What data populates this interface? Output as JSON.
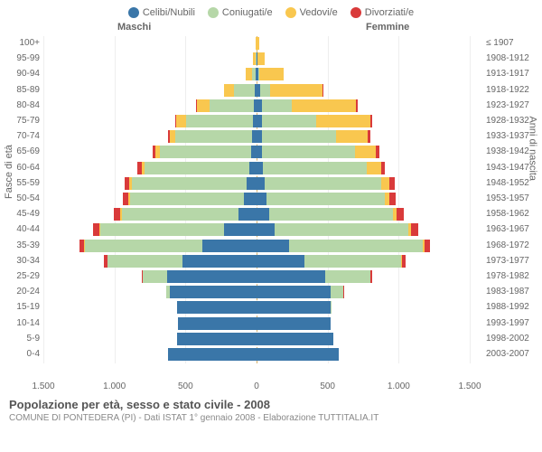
{
  "legend": [
    {
      "label": "Celibi/Nubili",
      "color": "#3a76a8"
    },
    {
      "label": "Coniugati/e",
      "color": "#b6d7a8"
    },
    {
      "label": "Vedovi/e",
      "color": "#f9c74f"
    },
    {
      "label": "Divorziati/e",
      "color": "#d93a3a"
    }
  ],
  "headers": {
    "male": "Maschi",
    "female": "Femmine"
  },
  "axis": {
    "left_title": "Fasce di età",
    "right_title": "Anni di nascita",
    "x_ticks": [
      {
        "v": -1500,
        "l": "1.500"
      },
      {
        "v": -1000,
        "l": "1.000"
      },
      {
        "v": -500,
        "l": "500"
      },
      {
        "v": 0,
        "l": "0"
      },
      {
        "v": 500,
        "l": "500"
      },
      {
        "v": 1000,
        "l": "1.000"
      },
      {
        "v": 1500,
        "l": "1.500"
      }
    ],
    "x_max": 1500,
    "grid": [
      -1500,
      -1000,
      -500,
      0,
      500,
      1000,
      1500
    ]
  },
  "colors": {
    "celibi": "#3a76a8",
    "coniugati": "#b6d7a8",
    "vedovi": "#f9c74f",
    "divorziati": "#d93a3a",
    "grid": "#eeeeee",
    "center": "#d8b26b",
    "bg": "#ffffff"
  },
  "rows": [
    {
      "age": "100+",
      "birth": "≤ 1907",
      "m": {
        "c": 0,
        "co": 0,
        "v": 5,
        "d": 0
      },
      "f": {
        "c": 0,
        "co": 0,
        "v": 20,
        "d": 0
      }
    },
    {
      "age": "95-99",
      "birth": "1908-1912",
      "m": {
        "c": 0,
        "co": 5,
        "v": 20,
        "d": 0
      },
      "f": {
        "c": 5,
        "co": 0,
        "v": 55,
        "d": 0
      }
    },
    {
      "age": "90-94",
      "birth": "1913-1917",
      "m": {
        "c": 5,
        "co": 30,
        "v": 40,
        "d": 0
      },
      "f": {
        "c": 10,
        "co": 10,
        "v": 170,
        "d": 0
      }
    },
    {
      "age": "85-89",
      "birth": "1918-1922",
      "m": {
        "c": 10,
        "co": 150,
        "v": 70,
        "d": 0
      },
      "f": {
        "c": 25,
        "co": 70,
        "v": 370,
        "d": 5
      }
    },
    {
      "age": "80-84",
      "birth": "1923-1927",
      "m": {
        "c": 20,
        "co": 310,
        "v": 90,
        "d": 5
      },
      "f": {
        "c": 40,
        "co": 210,
        "v": 450,
        "d": 10
      }
    },
    {
      "age": "75-79",
      "birth": "1928-1932",
      "m": {
        "c": 25,
        "co": 470,
        "v": 70,
        "d": 10
      },
      "f": {
        "c": 40,
        "co": 380,
        "v": 380,
        "d": 15
      }
    },
    {
      "age": "70-74",
      "birth": "1933-1937",
      "m": {
        "c": 30,
        "co": 540,
        "v": 40,
        "d": 15
      },
      "f": {
        "c": 40,
        "co": 520,
        "v": 220,
        "d": 20
      }
    },
    {
      "age": "65-69",
      "birth": "1938-1942",
      "m": {
        "c": 40,
        "co": 640,
        "v": 30,
        "d": 20
      },
      "f": {
        "c": 40,
        "co": 650,
        "v": 150,
        "d": 25
      }
    },
    {
      "age": "60-64",
      "birth": "1943-1947",
      "m": {
        "c": 50,
        "co": 740,
        "v": 20,
        "d": 30
      },
      "f": {
        "c": 45,
        "co": 730,
        "v": 100,
        "d": 30
      }
    },
    {
      "age": "55-59",
      "birth": "1948-1952",
      "m": {
        "c": 70,
        "co": 810,
        "v": 15,
        "d": 35
      },
      "f": {
        "c": 55,
        "co": 820,
        "v": 60,
        "d": 40
      }
    },
    {
      "age": "50-54",
      "birth": "1953-1957",
      "m": {
        "c": 90,
        "co": 800,
        "v": 10,
        "d": 40
      },
      "f": {
        "c": 70,
        "co": 830,
        "v": 35,
        "d": 45
      }
    },
    {
      "age": "45-49",
      "birth": "1958-1962",
      "m": {
        "c": 130,
        "co": 820,
        "v": 8,
        "d": 45
      },
      "f": {
        "c": 90,
        "co": 870,
        "v": 25,
        "d": 50
      }
    },
    {
      "age": "40-44",
      "birth": "1963-1967",
      "m": {
        "c": 230,
        "co": 870,
        "v": 5,
        "d": 45
      },
      "f": {
        "c": 130,
        "co": 940,
        "v": 15,
        "d": 50
      }
    },
    {
      "age": "35-39",
      "birth": "1968-1972",
      "m": {
        "c": 380,
        "co": 830,
        "v": 3,
        "d": 35
      },
      "f": {
        "c": 230,
        "co": 940,
        "v": 10,
        "d": 40
      }
    },
    {
      "age": "30-34",
      "birth": "1973-1977",
      "m": {
        "c": 520,
        "co": 530,
        "v": 2,
        "d": 20
      },
      "f": {
        "c": 340,
        "co": 680,
        "v": 5,
        "d": 25
      }
    },
    {
      "age": "25-29",
      "birth": "1978-1982",
      "m": {
        "c": 630,
        "co": 170,
        "v": 0,
        "d": 8
      },
      "f": {
        "c": 480,
        "co": 320,
        "v": 3,
        "d": 12
      }
    },
    {
      "age": "20-24",
      "birth": "1983-1987",
      "m": {
        "c": 610,
        "co": 25,
        "v": 0,
        "d": 2
      },
      "f": {
        "c": 520,
        "co": 90,
        "v": 0,
        "d": 3
      }
    },
    {
      "age": "15-19",
      "birth": "1988-1992",
      "m": {
        "c": 560,
        "co": 2,
        "v": 0,
        "d": 0
      },
      "f": {
        "c": 520,
        "co": 8,
        "v": 0,
        "d": 0
      }
    },
    {
      "age": "10-14",
      "birth": "1993-1997",
      "m": {
        "c": 550,
        "co": 0,
        "v": 0,
        "d": 0
      },
      "f": {
        "c": 520,
        "co": 0,
        "v": 0,
        "d": 0
      }
    },
    {
      "age": "5-9",
      "birth": "1998-2002",
      "m": {
        "c": 560,
        "co": 0,
        "v": 0,
        "d": 0
      },
      "f": {
        "c": 540,
        "co": 0,
        "v": 0,
        "d": 0
      }
    },
    {
      "age": "0-4",
      "birth": "2003-2007",
      "m": {
        "c": 620,
        "co": 0,
        "v": 0,
        "d": 0
      },
      "f": {
        "c": 580,
        "co": 0,
        "v": 0,
        "d": 0
      }
    }
  ],
  "footer": {
    "title": "Popolazione per età, sesso e stato civile - 2008",
    "subtitle": "COMUNE DI PONTEDERA (PI) - Dati ISTAT 1° gennaio 2008 - Elaborazione TUTTITALIA.IT"
  },
  "layout": {
    "row_height": 17.2,
    "plot_half_width": 236
  }
}
